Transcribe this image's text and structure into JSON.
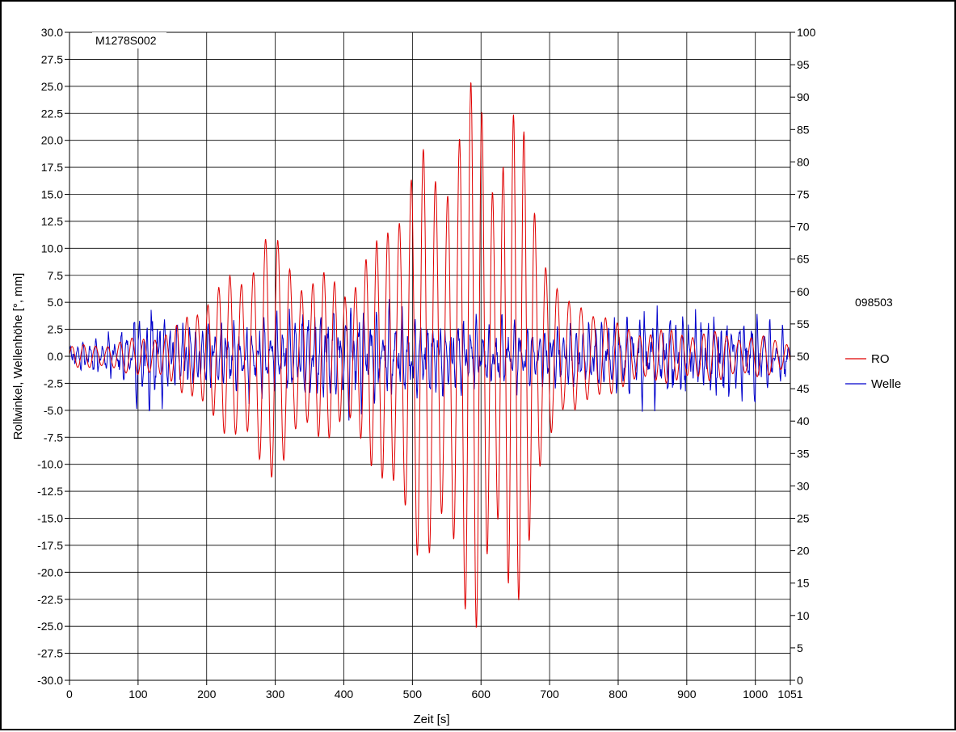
{
  "chart_data": {
    "type": "line",
    "title": "",
    "annotation": "M1278S002",
    "run_label": "098503",
    "xlabel": "Zeit [s]",
    "ylabel": "Rollwinkel, Wellenhöhe [°, mm]",
    "xlim": [
      0,
      1051
    ],
    "ylim": [
      -30,
      30
    ],
    "y2lim": [
      0,
      100
    ],
    "x_ticks": [
      "0",
      "100",
      "200",
      "300",
      "400",
      "500",
      "600",
      "700",
      "800",
      "900",
      "1000",
      "1051"
    ],
    "y_ticks": [
      "30.0",
      "27.5",
      "25.0",
      "22.5",
      "20.0",
      "17.5",
      "15.0",
      "12.5",
      "10.0",
      "7.5",
      "5.0",
      "2.5",
      "0.0",
      "-2.5",
      "-5.0",
      "-7.5",
      "-10.0",
      "-12.5",
      "-15.0",
      "-17.5",
      "-20.0",
      "-22.5",
      "-25.0",
      "-27.5",
      "-30.0"
    ],
    "y2_ticks": [
      "100",
      "95",
      "90",
      "85",
      "80",
      "75",
      "70",
      "65",
      "60",
      "55",
      "50",
      "45",
      "40",
      "35",
      "30",
      "25",
      "20",
      "15",
      "10",
      "5",
      "0"
    ],
    "grid": true,
    "legend_placement": "right",
    "series": [
      {
        "name": "RO",
        "color": "#e00000",
        "period_s": 16.5,
        "envelope": {
          "t": [
            0,
            50,
            100,
            150,
            180,
            200,
            250,
            280,
            300,
            350,
            400,
            430,
            450,
            480,
            500,
            540,
            560,
            590,
            600,
            620,
            640,
            660,
            680,
            700,
            720,
            760,
            800,
            850,
            900,
            1000,
            1051
          ],
          "amp": [
            1.0,
            1.2,
            1.8,
            2.5,
            4.5,
            6.5,
            8.0,
            13.0,
            11.0,
            8.0,
            7.5,
            9.5,
            11.0,
            17.5,
            19.0,
            19.5,
            22.5,
            26.0,
            26.0,
            20.5,
            24.5,
            22.0,
            16.0,
            10.0,
            5.0,
            5.5,
            3.0,
            2.5,
            2.5,
            2.0,
            1.5
          ]
        }
      },
      {
        "name": "Welle",
        "color": "#0000cc",
        "mean_secondary": 50,
        "envelope": {
          "t": [
            0,
            80,
            100,
            120,
            150,
            300,
            400,
            500,
            600,
            700,
            800,
            850,
            900,
            1000,
            1051
          ],
          "amp": [
            1.0,
            2.0,
            4.5,
            5.0,
            2.8,
            3.2,
            4.5,
            3.5,
            3.0,
            2.5,
            3.5,
            4.0,
            3.5,
            3.5,
            2.0
          ]
        }
      }
    ]
  }
}
